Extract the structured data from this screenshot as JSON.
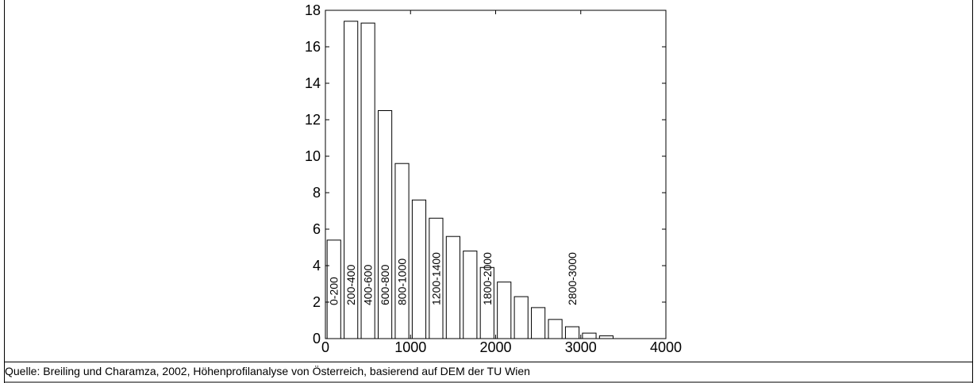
{
  "caption": "Quelle: Breiling und Charamza, 2002, Höhenprofilanalyse von Österreich, basierend auf DEM der TU Wien",
  "chart_data": {
    "type": "bar",
    "title": "",
    "xlabel": "",
    "ylabel": "",
    "xlim": [
      0,
      4000
    ],
    "ylim": [
      0,
      18
    ],
    "xticks": [
      0,
      1000,
      2000,
      3000,
      4000
    ],
    "yticks": [
      0,
      2,
      4,
      6,
      8,
      10,
      12,
      14,
      16,
      18
    ],
    "grid": false,
    "bar_width": 160,
    "x": [
      100,
      300,
      500,
      700,
      900,
      1100,
      1300,
      1500,
      1700,
      1900,
      2100,
      2300,
      2500,
      2700,
      2900,
      3100,
      3300
    ],
    "values": [
      5.4,
      17.4,
      17.3,
      12.5,
      9.6,
      7.6,
      6.6,
      5.6,
      4.8,
      3.9,
      3.1,
      2.3,
      1.7,
      1.05,
      0.65,
      0.3,
      0.15
    ],
    "bar_labels": [
      "0-200",
      "200-400",
      "400-600",
      "600-800",
      "800-1000",
      "",
      "1200-1400",
      "",
      "",
      "1800-2000",
      "",
      "",
      "",
      "",
      "2800-3000",
      "",
      ""
    ],
    "bar_fill": "#ffffff",
    "bar_stroke": "#000000"
  }
}
